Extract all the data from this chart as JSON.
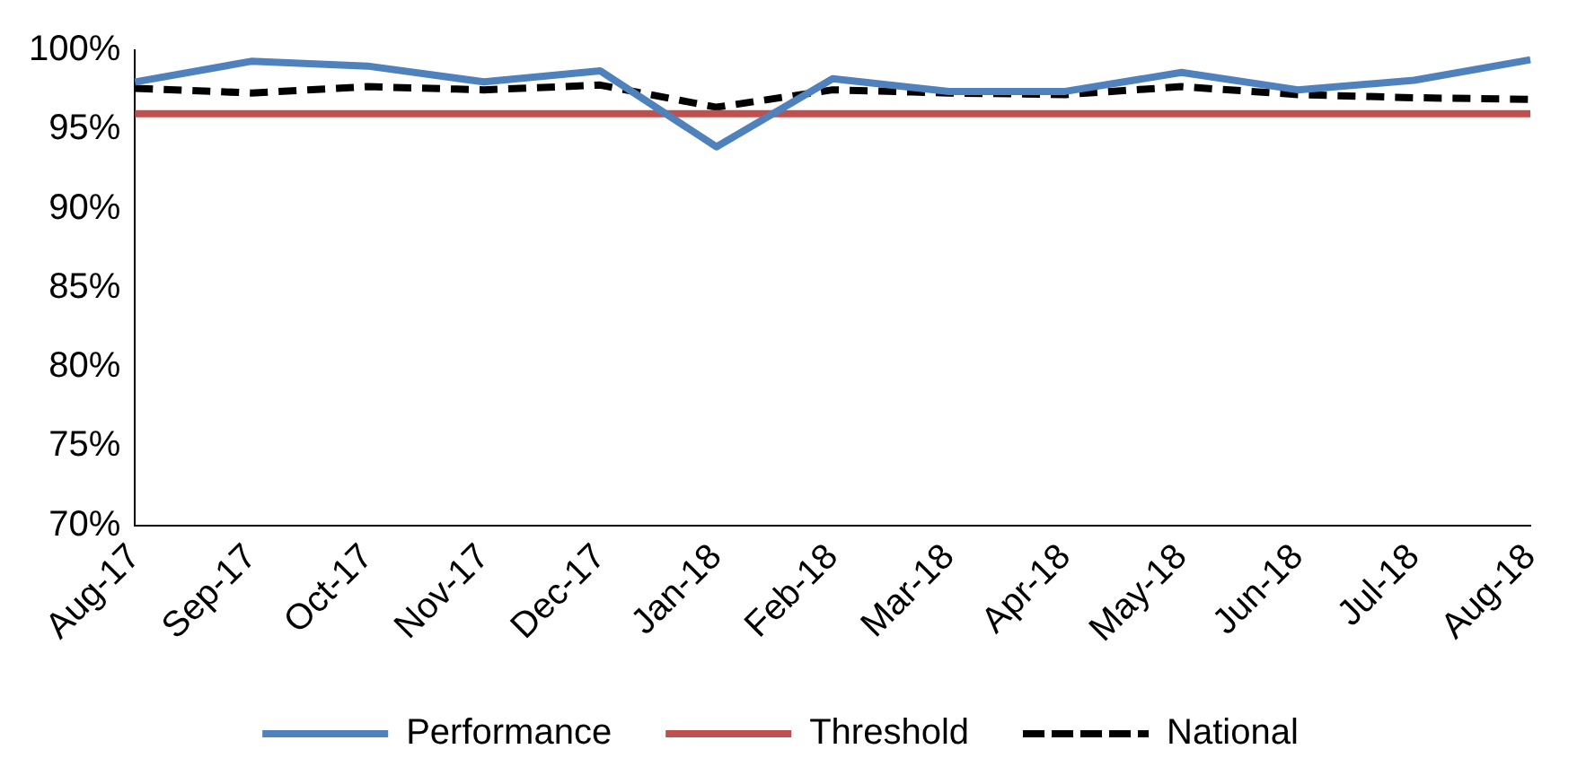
{
  "chart_data": {
    "type": "line",
    "categories": [
      "Aug-17",
      "Sep-17",
      "Oct-17",
      "Nov-17",
      "Dec-17",
      "Jan-18",
      "Feb-18",
      "Mar-18",
      "Apr-18",
      "May-18",
      "Jun-18",
      "Jul-18",
      "Aug-18"
    ],
    "series": [
      {
        "name": "Performance",
        "color": "#4f81bd",
        "values": [
          98.0,
          99.3,
          99.0,
          98.0,
          98.7,
          93.9,
          98.2,
          97.4,
          97.4,
          98.6,
          97.5,
          98.1,
          99.4
        ]
      },
      {
        "name": "Threshold",
        "color": "#c0504d",
        "values": [
          96,
          96,
          96,
          96,
          96,
          96,
          96,
          96,
          96,
          96,
          96,
          96,
          96
        ]
      },
      {
        "name": "National",
        "color": "#000000",
        "line_style": "dashed",
        "values": [
          97.6,
          97.3,
          97.7,
          97.5,
          97.8,
          96.4,
          97.5,
          97.3,
          97.2,
          97.7,
          97.2,
          97.0,
          96.9
        ]
      }
    ],
    "ylim": [
      70,
      100
    ],
    "yticks": [
      {
        "value": 70,
        "label": "70%"
      },
      {
        "value": 75,
        "label": "75%"
      },
      {
        "value": 80,
        "label": "80%"
      },
      {
        "value": 85,
        "label": "85%"
      },
      {
        "value": 90,
        "label": "90%"
      },
      {
        "value": 95,
        "label": "95%"
      },
      {
        "value": 100,
        "label": "100%"
      }
    ],
    "grid": false,
    "legend": "bottom",
    "marker": "none",
    "line_style": "solid"
  }
}
